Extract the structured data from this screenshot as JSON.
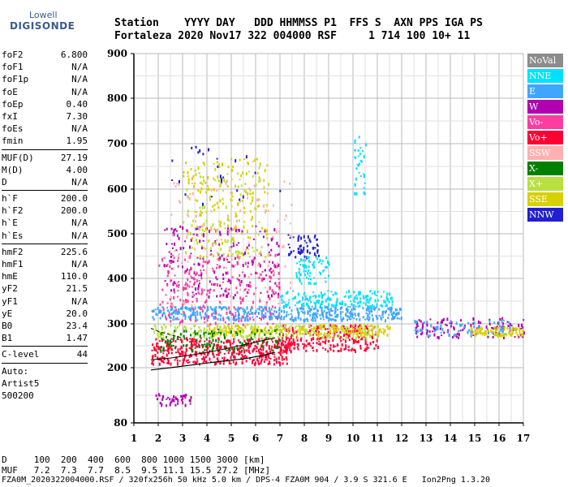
{
  "logo": {
    "line1": "Lowell",
    "line2": "DIGISONDE"
  },
  "header": {
    "labels": "Station    YYYY DAY   DDD HHMMSS P1  FFS S  AXN PPS IGA PS",
    "values": "Fortaleza 2020 Nov17 322 004000 RSF     1 714 100 10+ 11"
  },
  "params": {
    "group1": [
      {
        "name": "foF2",
        "value": "6.800"
      },
      {
        "name": "foF1",
        "value": "N/A"
      },
      {
        "name": "foF1p",
        "value": "N/A"
      },
      {
        "name": "foE",
        "value": "N/A"
      },
      {
        "name": "foEp",
        "value": "0.40"
      },
      {
        "name": "fxI",
        "value": "7.30"
      },
      {
        "name": "foEs",
        "value": "N/A"
      },
      {
        "name": "fmin",
        "value": "1.95"
      }
    ],
    "group2": [
      {
        "name": "MUF(D)",
        "value": "27.19"
      },
      {
        "name": "M(D)",
        "value": "4.00"
      },
      {
        "name": "D",
        "value": "N/A"
      }
    ],
    "group3": [
      {
        "name": "h`F",
        "value": "200.0"
      },
      {
        "name": "h`F2",
        "value": "200.0"
      },
      {
        "name": "h`E",
        "value": "N/A"
      },
      {
        "name": "h`Es",
        "value": "N/A"
      }
    ],
    "group4": [
      {
        "name": "hmF2",
        "value": "225.6"
      },
      {
        "name": "hmF1",
        "value": "N/A"
      },
      {
        "name": "hmE",
        "value": "110.0"
      },
      {
        "name": "yF2",
        "value": "21.5"
      },
      {
        "name": "yF1",
        "value": "N/A"
      },
      {
        "name": "yE",
        "value": "20.0"
      },
      {
        "name": "B0",
        "value": "23.4"
      },
      {
        "name": "B1",
        "value": "1.47"
      }
    ],
    "group5": [
      {
        "name": "C-level",
        "value": "44"
      }
    ],
    "auto_label": "Auto:",
    "auto_name": "Artist5",
    "auto_version": "500200"
  },
  "muf_table": {
    "d_row": "D     100  200  400  600  800 1000 1500 3000 [km]",
    "muf_row": "MUF   7.2  7.3  7.7  8.5  9.5 11.1 15.5 27.2 [MHz]"
  },
  "footer": "FZA0M_2020322004000.RSF / 320fx256h 50 kHz 5.0 km / DPS-4 FZA0M 904 / 3.9 S 321.6 E   Ion2Png 1.3.20",
  "legend": [
    {
      "label": "NoVal",
      "color": "#8c8c8c"
    },
    {
      "label": "NNE",
      "color": "#00e1ff"
    },
    {
      "label": "E",
      "color": "#3fa6ff"
    },
    {
      "label": "W",
      "color": "#b000b0"
    },
    {
      "label": "Vo-",
      "color": "#ff3ca0"
    },
    {
      "label": "Vo+",
      "color": "#ff0033"
    },
    {
      "label": "SSW",
      "color": "#ffb0b0"
    },
    {
      "label": "X-",
      "color": "#008000"
    },
    {
      "label": "X+",
      "color": "#b8e040"
    },
    {
      "label": "SSE",
      "color": "#d8d000"
    },
    {
      "label": "NNW",
      "color": "#2020d0"
    }
  ],
  "chart_data": {
    "type": "scatter",
    "xlim": [
      1,
      17
    ],
    "ylim": [
      80,
      900
    ],
    "x_ticks": [
      "1",
      "2",
      "3",
      "4",
      "5",
      "6",
      "7",
      "8",
      "9",
      "10",
      "11",
      "12",
      "13",
      "14",
      "15",
      "16",
      "17"
    ],
    "y_ticks": [
      "80",
      "200",
      "300",
      "400",
      "500",
      "600",
      "700",
      "800",
      "900"
    ],
    "y_tick_values": [
      80,
      200,
      300,
      400,
      500,
      600,
      700,
      800,
      900
    ],
    "grid": true,
    "legend_position": "right",
    "profile_curve": {
      "x": [
        1.7,
        2.5,
        3.5,
        4.5,
        5.5,
        6.3,
        6.8
      ],
      "y": [
        195,
        200,
        207,
        214,
        220,
        228,
        235
      ]
    },
    "trace_upper": {
      "x": [
        1.7,
        2.0,
        2.5,
        3.0
      ],
      "y": [
        290,
        283,
        275,
        268
      ]
    },
    "trace_lower": {
      "x": [
        1.7,
        2.5,
        3.5,
        4.5,
        5.5,
        6.3,
        6.8
      ],
      "y": [
        218,
        222,
        230,
        240,
        252,
        262,
        268
      ]
    },
    "echo_clusters": [
      {
        "name": "Vo+",
        "x": [
          1.7,
          7.4
        ],
        "y": [
          210,
          270
        ],
        "color": "#ff0033",
        "n": 450
      },
      {
        "name": "Vo+",
        "x": [
          7.0,
          11.0
        ],
        "y": [
          240,
          300
        ],
        "color": "#ff0033",
        "n": 260
      },
      {
        "name": "E",
        "x": [
          1.7,
          12.0
        ],
        "y": [
          310,
          340
        ],
        "color": "#3fa6ff",
        "n": 500
      },
      {
        "name": "NNE",
        "x": [
          7.0,
          11.6
        ],
        "y": [
          340,
          375
        ],
        "color": "#00e1ff",
        "n": 180
      },
      {
        "name": "X+",
        "x": [
          1.8,
          11.0
        ],
        "y": [
          270,
          300
        ],
        "color": "#b8e040",
        "n": 220
      },
      {
        "name": "SSE",
        "x": [
          4.0,
          11.5
        ],
        "y": [
          275,
          300
        ],
        "color": "#d8d000",
        "n": 200
      },
      {
        "name": "W",
        "x": [
          2.2,
          7.0
        ],
        "y": [
          360,
          520
        ],
        "color": "#b000b0",
        "n": 200
      },
      {
        "name": "Vo-",
        "x": [
          2.0,
          7.0
        ],
        "y": [
          300,
          460
        ],
        "color": "#ff3ca0",
        "n": 260
      },
      {
        "name": "X-",
        "x": [
          2.0,
          7.0
        ],
        "y": [
          240,
          290
        ],
        "color": "#008000",
        "n": 120
      },
      {
        "name": "SSE",
        "x": [
          3.0,
          6.5
        ],
        "y": [
          450,
          670
        ],
        "color": "#d8d000",
        "n": 180
      },
      {
        "name": "X+",
        "x": [
          3.0,
          6.5
        ],
        "y": [
          450,
          650
        ],
        "color": "#b8e040",
        "n": 90
      },
      {
        "name": "SSW",
        "x": [
          2.5,
          7.5
        ],
        "y": [
          340,
          620
        ],
        "color": "#ffb0b0",
        "n": 110
      },
      {
        "name": "NNW",
        "x": [
          7.3,
          8.6
        ],
        "y": [
          450,
          500
        ],
        "color": "#2020d0",
        "n": 60
      },
      {
        "name": "NNE",
        "x": [
          7.6,
          9.0
        ],
        "y": [
          390,
          450
        ],
        "color": "#00e1ff",
        "n": 70
      },
      {
        "name": "W",
        "x": [
          12.5,
          17.0
        ],
        "y": [
          270,
          315
        ],
        "color": "#b000b0",
        "n": 120
      },
      {
        "name": "SSE",
        "x": [
          14.8,
          17.0
        ],
        "y": [
          275,
          295
        ],
        "color": "#d8d000",
        "n": 100
      },
      {
        "name": "E",
        "x": [
          12.5,
          16.5
        ],
        "y": [
          275,
          310
        ],
        "color": "#3fa6ff",
        "n": 60
      },
      {
        "name": "NNE",
        "x": [
          10.0,
          10.5
        ],
        "y": [
          590,
          720
        ],
        "color": "#00e1ff",
        "n": 35
      },
      {
        "name": "W",
        "x": [
          1.8,
          3.4
        ],
        "y": [
          120,
          145
        ],
        "color": "#b000b0",
        "n": 45
      },
      {
        "name": "NNW",
        "x": [
          2.5,
          7.0
        ],
        "y": [
          550,
          700
        ],
        "color": "#2020d0",
        "n": 25
      }
    ]
  }
}
